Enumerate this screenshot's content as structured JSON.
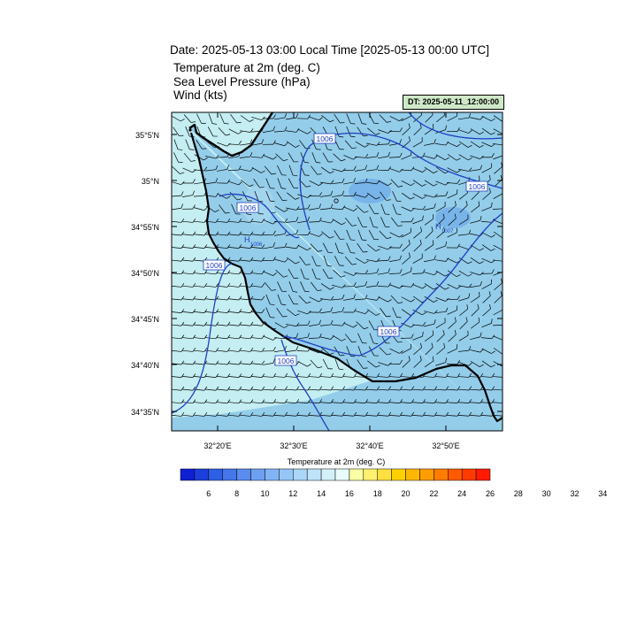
{
  "header": {
    "title": "Date: 2025-05-13  03:00 Local Time [2025-05-13  00:00 UTC]",
    "fields": [
      "Temperature at 2m   (deg. C)",
      "Sea Level Pressure   (hPa)",
      "Wind   (kts)"
    ],
    "init_time": "DT: 2025-05-11_12:00:00"
  },
  "map": {
    "lat_labels": [
      "35°5'N",
      "35°N",
      "34°55'N",
      "34°50'N",
      "34°45'N",
      "34°40'N",
      "34°35'N"
    ],
    "lon_labels": [
      "32°20'E",
      "32°30'E",
      "32°40'E",
      "32°50'E"
    ],
    "isobar_labels": [
      "1006",
      "1006",
      "1006",
      "1006",
      "1006",
      "1006"
    ],
    "pressure_centers": [
      {
        "symbol": "H",
        "value": "1006"
      },
      {
        "symbol": "H",
        "value": "1007"
      }
    ],
    "colors": {
      "sea_fill": "#c4eef2",
      "land_fill": "#93cdea",
      "isobar": "#1f3fc0",
      "coast": "#000000"
    }
  },
  "colorbar": {
    "title": "Temperature at 2m  (deg. C)",
    "tick_labels": [
      "6",
      "8",
      "10",
      "12",
      "14",
      "16",
      "18",
      "20",
      "22",
      "24",
      "26",
      "28",
      "30",
      "32",
      "34"
    ],
    "colors": [
      "#0f1fd4",
      "#1c3fdc",
      "#2f5fe4",
      "#4576ea",
      "#5a8cef",
      "#6ea0f2",
      "#82b4f5",
      "#96c6f7",
      "#aad6f8",
      "#bfe4f9",
      "#d3f0fa",
      "#e8fcfc",
      "#f8ffa4",
      "#fff070",
      "#ffe040",
      "#ffd000",
      "#ffb800",
      "#ff9c00",
      "#ff7c00",
      "#ff5a00",
      "#ff3a00",
      "#ff1a00"
    ]
  }
}
